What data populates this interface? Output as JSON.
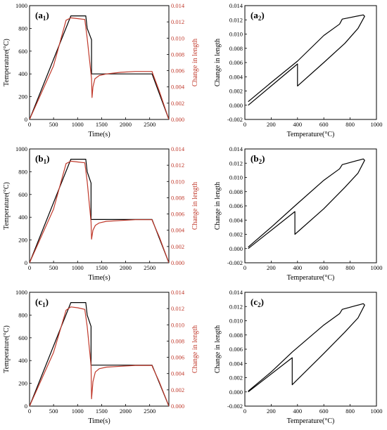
{
  "chart_data": [
    {
      "id": "a1",
      "type": "line",
      "label_main": "a",
      "label_sub": "1",
      "xlabel": "Time(s)",
      "ylabel": "Temperature(°C)",
      "y2label": "Change in length",
      "xlim": [
        0,
        2900
      ],
      "ylim": [
        0,
        1000
      ],
      "y2lim": [
        0,
        0.014
      ],
      "xticks": [
        "0",
        "500",
        "1000",
        "1500",
        "2000",
        "2500"
      ],
      "yticks": [
        "0",
        "200",
        "400",
        "600",
        "800",
        "1000"
      ],
      "y2ticks": [
        "0.000",
        "0.002",
        "0.004",
        "0.006",
        "0.008",
        "0.010",
        "0.012",
        "0.014"
      ],
      "series": [
        {
          "axis": "left",
          "color": "#000000",
          "x": [
            0,
            860,
            910,
            1170,
            1200,
            1290,
            1290,
            2550,
            2900
          ],
          "y": [
            0,
            910,
            910,
            910,
            800,
            700,
            400,
            400,
            0
          ]
        },
        {
          "axis": "right",
          "color": "#c0392b",
          "x": [
            0,
            500,
            760,
            860,
            1000,
            1150,
            1200,
            1290,
            1300,
            1320,
            1360,
            1450,
            1600,
            1900,
            2200,
            2550,
            2560,
            2700,
            2900
          ],
          "y": [
            0.0,
            0.0066,
            0.0122,
            0.0125,
            0.0124,
            0.0123,
            0.01,
            0.005,
            0.0027,
            0.004,
            0.005,
            0.0054,
            0.0056,
            0.0058,
            0.0059,
            0.0059,
            0.0057,
            0.0035,
            0.0
          ]
        }
      ]
    },
    {
      "id": "a2",
      "type": "line",
      "label_main": "a",
      "label_sub": "2",
      "xlabel": "Temperature(°C)",
      "ylabel": "Change in length",
      "xlim": [
        0,
        1000
      ],
      "ylim": [
        -0.002,
        0.014
      ],
      "xticks": [
        "0",
        "200",
        "400",
        "600",
        "800",
        "1000"
      ],
      "yticks": [
        "-0.002",
        "0.000",
        "0.002",
        "0.004",
        "0.006",
        "0.008",
        "0.010",
        "0.012",
        "0.014"
      ],
      "series": [
        {
          "color": "#000000",
          "x": [
            25,
            400,
            400,
            600,
            760,
            860,
            910,
            900,
            740,
            720,
            600,
            400,
            200,
            25
          ],
          "y": [
            0.0,
            0.0058,
            0.0027,
            0.006,
            0.0087,
            0.0108,
            0.0125,
            0.0127,
            0.0121,
            0.0114,
            0.0098,
            0.0062,
            0.0032,
            0.0005
          ]
        }
      ]
    },
    {
      "id": "b1",
      "type": "line",
      "label_main": "b",
      "label_sub": "1",
      "xlabel": "Time(s)",
      "ylabel": "Temperature(°C)",
      "y2label": "Change in length",
      "xlim": [
        0,
        2900
      ],
      "ylim": [
        0,
        1000
      ],
      "y2lim": [
        0,
        0.014
      ],
      "xticks": [
        "0",
        "500",
        "1000",
        "1500",
        "2000",
        "2500"
      ],
      "yticks": [
        "0",
        "200",
        "400",
        "600",
        "800",
        "1000"
      ],
      "y2ticks": [
        "0.000",
        "0.002",
        "0.004",
        "0.006",
        "0.008",
        "0.010",
        "0.012",
        "0.014"
      ],
      "series": [
        {
          "axis": "left",
          "color": "#000000",
          "x": [
            0,
            860,
            910,
            1170,
            1200,
            1280,
            1280,
            2550,
            2900
          ],
          "y": [
            0,
            910,
            910,
            910,
            800,
            700,
            380,
            380,
            0
          ]
        },
        {
          "axis": "right",
          "color": "#c0392b",
          "x": [
            0,
            500,
            760,
            860,
            1000,
            1150,
            1200,
            1280,
            1290,
            1320,
            1370,
            1450,
            1600,
            1900,
            2200,
            2550,
            2560,
            2700,
            2900
          ],
          "y": [
            0.0,
            0.0066,
            0.0122,
            0.0125,
            0.0124,
            0.0123,
            0.01,
            0.005,
            0.0029,
            0.004,
            0.0046,
            0.0049,
            0.0051,
            0.0052,
            0.0053,
            0.0053,
            0.0051,
            0.0032,
            0.0
          ]
        }
      ]
    },
    {
      "id": "b2",
      "type": "line",
      "label_main": "b",
      "label_sub": "2",
      "xlabel": "Temperature(°C)",
      "ylabel": "Change in length",
      "xlim": [
        0,
        1000
      ],
      "ylim": [
        -0.002,
        0.014
      ],
      "xticks": [
        "0",
        "200",
        "400",
        "600",
        "800",
        "1000"
      ],
      "yticks": [
        "-0.002",
        "0.000",
        "0.002",
        "0.004",
        "0.006",
        "0.008",
        "0.010",
        "0.012",
        "0.014"
      ],
      "series": [
        {
          "color": "#000000",
          "x": [
            25,
            380,
            380,
            600,
            760,
            860,
            910,
            900,
            740,
            720,
            600,
            380,
            200,
            25
          ],
          "y": [
            0.0,
            0.0052,
            0.002,
            0.0056,
            0.0086,
            0.0106,
            0.0124,
            0.0126,
            0.0118,
            0.0112,
            0.0096,
            0.006,
            0.003,
            0.0002
          ]
        }
      ]
    },
    {
      "id": "c1",
      "type": "line",
      "label_main": "c",
      "label_sub": "1",
      "xlabel": "Time(s)",
      "ylabel": "Temperature(°C)",
      "y2label": "Change in length",
      "xlim": [
        0,
        2900
      ],
      "ylim": [
        0,
        1000
      ],
      "y2lim": [
        0,
        0.014
      ],
      "xticks": [
        "0",
        "500",
        "1000",
        "1500",
        "2000",
        "2500"
      ],
      "yticks": [
        "0",
        "200",
        "400",
        "600",
        "800",
        "1000"
      ],
      "y2ticks": [
        "0.000",
        "0.002",
        "0.004",
        "0.006",
        "0.008",
        "0.010",
        "0.012",
        "0.014"
      ],
      "series": [
        {
          "axis": "left",
          "color": "#000000",
          "x": [
            0,
            860,
            910,
            1170,
            1200,
            1280,
            1280,
            2550,
            2900
          ],
          "y": [
            0,
            910,
            910,
            910,
            800,
            700,
            360,
            360,
            0
          ]
        },
        {
          "axis": "right",
          "color": "#c0392b",
          "x": [
            0,
            500,
            760,
            860,
            1000,
            1150,
            1200,
            1280,
            1290,
            1320,
            1370,
            1450,
            1600,
            1900,
            2200,
            2550,
            2560,
            2700,
            2900
          ],
          "y": [
            0.0,
            0.0066,
            0.0118,
            0.0122,
            0.0121,
            0.0119,
            0.0098,
            0.005,
            0.0009,
            0.003,
            0.0042,
            0.0046,
            0.0048,
            0.0049,
            0.005,
            0.005,
            0.0048,
            0.003,
            0.0
          ]
        }
      ]
    },
    {
      "id": "c2",
      "type": "line",
      "label_main": "c",
      "label_sub": "2",
      "xlabel": "Temperature(°C)",
      "ylabel": "Change in length",
      "xlim": [
        0,
        1000
      ],
      "ylim": [
        -0.002,
        0.014
      ],
      "xticks": [
        "0",
        "200",
        "400",
        "600",
        "800",
        "1000"
      ],
      "yticks": [
        "-0.002",
        "0.000",
        "0.002",
        "0.004",
        "0.006",
        "0.008",
        "0.010",
        "0.012",
        "0.014"
      ],
      "series": [
        {
          "color": "#000000",
          "x": [
            25,
            360,
            360,
            600,
            760,
            860,
            910,
            900,
            740,
            720,
            600,
            360,
            200,
            25
          ],
          "y": [
            0.0,
            0.0048,
            0.001,
            0.0054,
            0.0084,
            0.0104,
            0.0122,
            0.0124,
            0.0116,
            0.011,
            0.0094,
            0.0056,
            0.0028,
            0.0001
          ]
        }
      ]
    }
  ]
}
